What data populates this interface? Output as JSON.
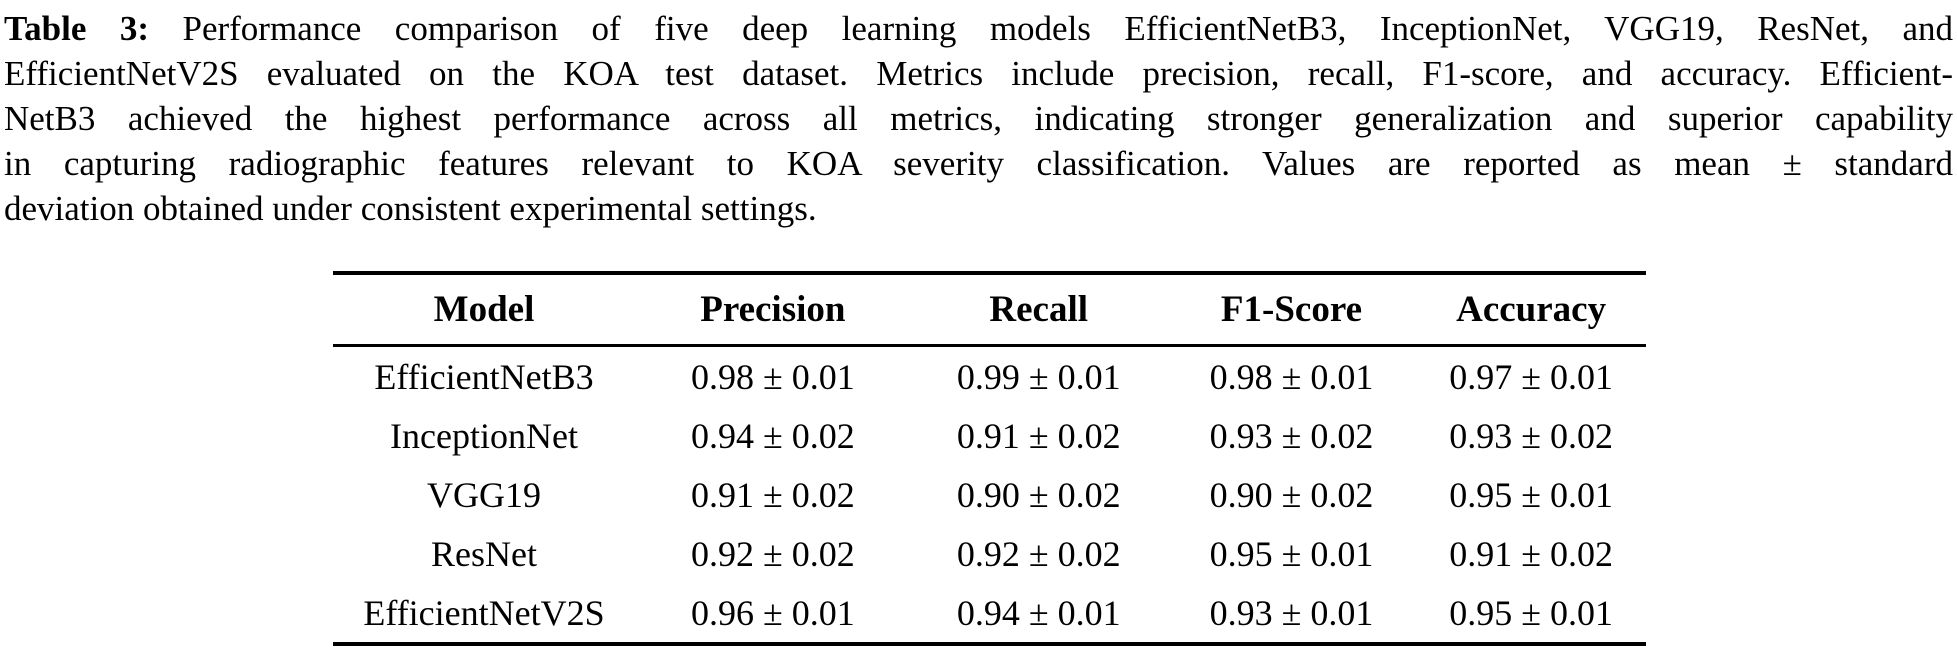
{
  "caption": {
    "label": "Table 3:",
    "line1_rest": "Performance comparison of five deep learning models EfficientNetB3, InceptionNet, VGG19, ResNet, and",
    "line2": "EfficientNetV2S evaluated on the KOA test dataset. Metrics include precision, recall, F1-score, and accuracy. Efficient-",
    "line3": "NetB3 achieved the highest performance across all metrics, indicating stronger generalization and superior capability",
    "line4": "in capturing radiographic features relevant to KOA severity classification. Values are reported as mean ± standard",
    "line5": "deviation obtained under consistent experimental settings."
  },
  "table": {
    "headers": [
      "Model",
      "Precision",
      "Recall",
      "F1-Score",
      "Accuracy"
    ],
    "rows": [
      {
        "model": "EfficientNetB3",
        "precision": "0.98 ± 0.01",
        "recall": "0.99 ± 0.01",
        "f1": "0.98 ± 0.01",
        "accuracy": "0.97 ± 0.01"
      },
      {
        "model": "InceptionNet",
        "precision": "0.94 ± 0.02",
        "recall": "0.91 ± 0.02",
        "f1": "0.93 ± 0.02",
        "accuracy": "0.93 ± 0.02"
      },
      {
        "model": "VGG19",
        "precision": "0.91 ± 0.02",
        "recall": "0.90 ± 0.02",
        "f1": "0.90 ± 0.02",
        "accuracy": "0.95 ± 0.01"
      },
      {
        "model": "ResNet",
        "precision": "0.92 ± 0.02",
        "recall": "0.92 ± 0.02",
        "f1": "0.95 ± 0.01",
        "accuracy": "0.91 ± 0.02"
      },
      {
        "model": "EfficientNetV2S",
        "precision": "0.96 ± 0.01",
        "recall": "0.94 ± 0.01",
        "f1": "0.93 ± 0.01",
        "accuracy": "0.95 ± 0.01"
      }
    ]
  },
  "colors": {
    "text": "#000000",
    "background": "#ffffff",
    "rule": "#000000"
  }
}
